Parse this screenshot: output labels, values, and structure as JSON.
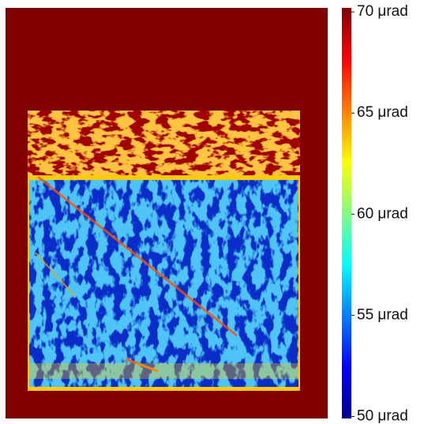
{
  "chart_data": {
    "type": "heatmap",
    "colormap": "jet",
    "colorbar": {
      "lim": [
        49.9,
        70.2
      ],
      "ticks": [
        {
          "value": 50,
          "label": "50 μrad"
        },
        {
          "value": 55,
          "label": "55 μrad"
        },
        {
          "value": 60,
          "label": "60 μrad"
        },
        {
          "value": 65,
          "label": "65 μrad"
        },
        {
          "value": 70,
          "label": "70 μrad"
        }
      ]
    }
  }
}
